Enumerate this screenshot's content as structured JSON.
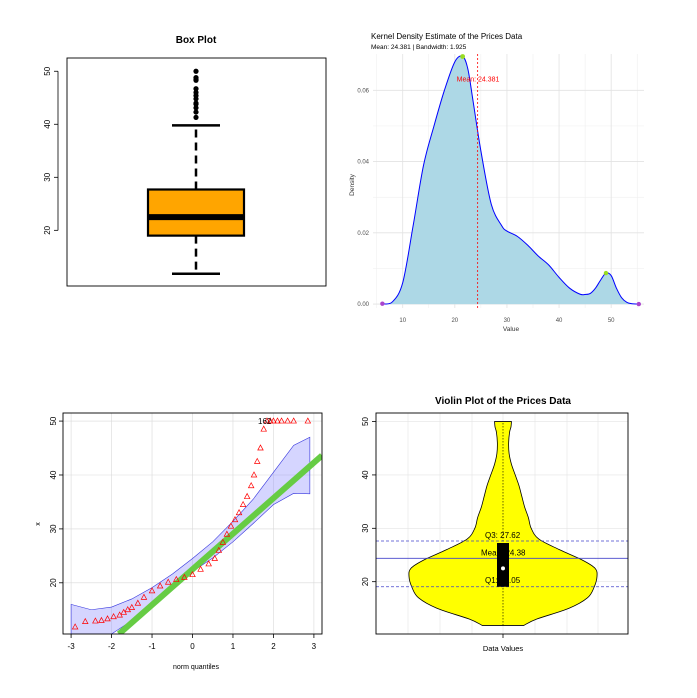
{
  "colors": {
    "box_fill": "#FFA500",
    "kde_fill": "#ADD8E6",
    "kde_line": "#0000FF",
    "mean_line": "#FF0000",
    "qq_points": "#FF0000",
    "qq_line": "#66CC44",
    "qq_band": "#8888FF",
    "violin_fill": "#FFFF00",
    "violin_lines": "#4444CC",
    "peak_marker": "#99DD22",
    "edge_marker": "#AA44CC"
  },
  "chart_data": [
    {
      "type": "box",
      "title": "Box Plot",
      "xlabel": "",
      "ylabel": "",
      "ylim": [
        9.5,
        52.5
      ],
      "yticks": [
        "20",
        "30",
        "40",
        "50"
      ],
      "stats": {
        "min": 11.8,
        "q1": 19.0,
        "median": 22.5,
        "q3": 27.7,
        "whisker_high": 39.8
      },
      "outliers": [
        41.3,
        42.3,
        43.1,
        43.8,
        44.0,
        44.8,
        45.4,
        46.0,
        46.7,
        48.3,
        48.5,
        48.8,
        50.0
      ]
    },
    {
      "type": "area",
      "title": "Kernel Density Estimate of the Prices Data",
      "subtitle": "Mean: 24.381 | Bandwidth: 1.925",
      "xlabel": "Value",
      "ylabel": "Density",
      "xlim": [
        4.3,
        56.3
      ],
      "ylim": [
        -0.0011,
        0.0702
      ],
      "xticks": [
        "10",
        "20",
        "30",
        "40",
        "50"
      ],
      "yticks": [
        "0.00",
        "0.02",
        "0.04",
        "0.06"
      ],
      "grid": true,
      "mean": 24.381,
      "mean_label": "Mean: 24.381",
      "x": [
        6.1,
        8,
        10,
        12,
        14,
        16,
        18,
        20,
        21.5,
        22.5,
        23.5,
        25,
        27,
        29,
        30,
        32,
        34,
        36,
        38,
        40,
        42,
        44,
        45,
        46,
        47,
        48,
        49,
        50,
        51,
        52,
        53,
        54,
        55.3
      ],
      "y": [
        0.0001,
        0.0006,
        0.006,
        0.022,
        0.039,
        0.05,
        0.06,
        0.068,
        0.0695,
        0.066,
        0.057,
        0.043,
        0.028,
        0.022,
        0.0205,
        0.019,
        0.0165,
        0.0135,
        0.011,
        0.0075,
        0.0045,
        0.0028,
        0.0027,
        0.003,
        0.0045,
        0.0068,
        0.0087,
        0.008,
        0.0045,
        0.0018,
        0.0005,
        0.0001,
        0.0
      ]
    },
    {
      "type": "scatter",
      "title": "",
      "xlabel": "norm quantiles",
      "ylabel": "x",
      "xlim": [
        -3.2,
        3.2
      ],
      "ylim": [
        10.5,
        51.5
      ],
      "xticks": [
        "-3",
        "-2",
        "-1",
        "0",
        "1",
        "2",
        "3"
      ],
      "yticks": [
        "20",
        "30",
        "40",
        "50"
      ],
      "grid": true,
      "point_labels": "162",
      "line": {
        "intercept": 22.5,
        "slope": 6.6
      },
      "band": {
        "q": [
          -3,
          -2.5,
          -2,
          -1.5,
          -1,
          -0.5,
          0,
          0.5,
          1,
          1.5,
          2,
          2.5,
          2.9
        ],
        "lower": [
          -2,
          3,
          8.5,
          13,
          16.5,
          19.6,
          22.1,
          24.6,
          27.6,
          31,
          34.5,
          36.6,
          36.5
        ],
        "upper": [
          16,
          15,
          15.5,
          17,
          19.1,
          21.6,
          24.5,
          27.6,
          31.4,
          35.5,
          40.5,
          45.5,
          47
        ]
      },
      "points": {
        "q": [
          -2.9,
          -2.65,
          -2.4,
          -2.25,
          -2.1,
          -1.95,
          -1.8,
          -1.7,
          -1.6,
          -1.5,
          -1.35,
          -1.2,
          -1.0,
          -0.8,
          -0.6,
          -0.4,
          -0.2,
          0.0,
          0.2,
          0.4,
          0.55,
          0.65,
          0.75,
          0.85,
          0.95,
          1.05,
          1.15,
          1.25,
          1.35,
          1.45,
          1.52,
          1.6,
          1.68,
          1.76,
          1.84,
          1.92,
          2.0,
          2.1,
          2.2,
          2.35,
          2.5,
          2.85
        ],
        "x": [
          11.8,
          12.8,
          12.9,
          13.0,
          13.3,
          13.7,
          14.0,
          14.5,
          15.0,
          15.4,
          16.2,
          17.3,
          18.5,
          19.4,
          20.1,
          20.6,
          21.0,
          21.5,
          22.5,
          23.5,
          24.5,
          26.0,
          27.5,
          29.0,
          30.5,
          31.7,
          33.0,
          34.5,
          36.0,
          38.0,
          40.0,
          42.5,
          45.0,
          48.5,
          50.0,
          50.0,
          50.0,
          50.0,
          50.0,
          50.0,
          50.0,
          50.0
        ]
      }
    },
    {
      "type": "violin",
      "title": "Violin Plot of the Prices Data",
      "xlabel": "Data Values",
      "ylabel": "",
      "ylim": [
        10.2,
        51.6
      ],
      "yticks": [
        "20",
        "30",
        "40",
        "50"
      ],
      "grid": true,
      "q1": 19.05,
      "q3": 27.62,
      "mean": 24.38,
      "median": 22.5,
      "q1_label": "Q1: 19.05",
      "q3_label": "Q3: 27.62",
      "mean_label": "Mean: 24.38",
      "shape": {
        "y": [
          11.8,
          13,
          15,
          17,
          19,
          21,
          22.5,
          24,
          26,
          28,
          30,
          32,
          34,
          36,
          38,
          40,
          42,
          44,
          46,
          48,
          49,
          50
        ],
        "half_width": [
          0.22,
          0.36,
          0.7,
          0.9,
          0.97,
          1.0,
          0.98,
          0.85,
          0.6,
          0.38,
          0.3,
          0.27,
          0.23,
          0.2,
          0.17,
          0.13,
          0.09,
          0.065,
          0.06,
          0.07,
          0.085,
          0.09
        ]
      }
    }
  ]
}
